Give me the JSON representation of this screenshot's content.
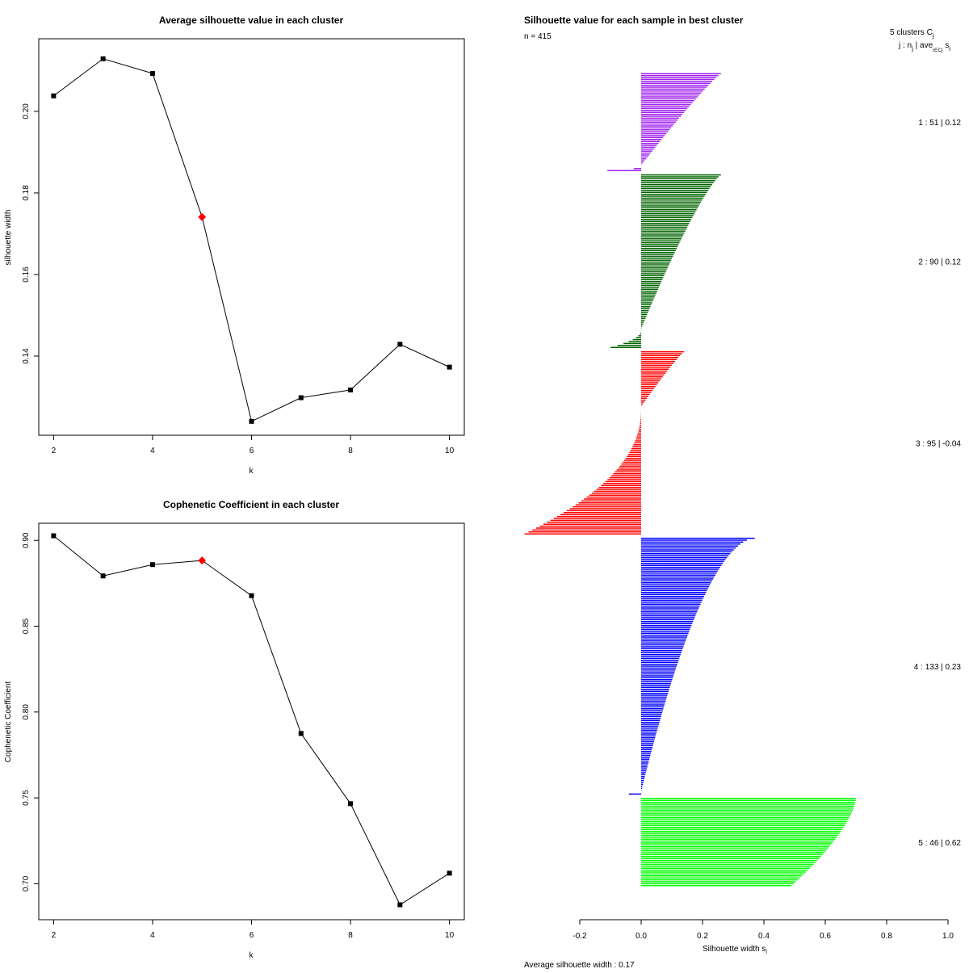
{
  "chart_data": [
    {
      "type": "line",
      "title": "Average silhouette value in each cluster",
      "xlabel": "k",
      "ylabel": "silhouette width",
      "x": [
        2,
        3,
        4,
        5,
        6,
        7,
        8,
        9,
        10
      ],
      "y": [
        0.2038,
        0.2129,
        0.2093,
        0.1741,
        0.124,
        0.1298,
        0.1317,
        0.1429,
        0.1373
      ],
      "highlight_k": 5,
      "xlim": [
        1.7,
        10.3
      ],
      "ylim": [
        0.1206,
        0.2178
      ],
      "xticks": [
        2,
        4,
        6,
        8,
        10
      ],
      "yticks": [
        0.14,
        0.16,
        0.18,
        0.2
      ],
      "xtick_labels": [
        "2",
        "4",
        "6",
        "8",
        "10"
      ],
      "ytick_labels": [
        "0.14",
        "0.16",
        "0.18",
        "0.20"
      ],
      "point_color": "#000000",
      "highlight_color": "#ff0000"
    },
    {
      "type": "line",
      "title": "Cophenetic Coefficient in each cluster",
      "xlabel": "k",
      "ylabel": "Cophenetic Coefficient",
      "x": [
        2,
        3,
        4,
        5,
        6,
        7,
        8,
        9,
        10
      ],
      "y": [
        0.9027,
        0.8793,
        0.8859,
        0.8883,
        0.8678,
        0.7875,
        0.7466,
        0.6877,
        0.7061
      ],
      "highlight_k": 5,
      "xlim": [
        1.7,
        10.3
      ],
      "ylim": [
        0.679,
        0.91
      ],
      "xticks": [
        2,
        4,
        6,
        8,
        10
      ],
      "yticks": [
        0.7,
        0.75,
        0.8,
        0.85,
        0.9
      ],
      "xtick_labels": [
        "2",
        "4",
        "6",
        "8",
        "10"
      ],
      "ytick_labels": [
        "0.70",
        "0.75",
        "0.80",
        "0.85",
        "0.90"
      ],
      "point_color": "#000000",
      "highlight_color": "#ff0000"
    },
    {
      "type": "bar",
      "orientation": "horizontal",
      "title": "Silhouette value for each sample in best cluster",
      "n_label": "n = 415",
      "header_line1": "5 clusters C",
      "header_line1_sub": "j",
      "header_line2": "j : n",
      "header_line2_sub": "j",
      "header_line2_tail": " | ave",
      "header_line2_tail_sub": "i∈Cj",
      "header_line2_end": " s",
      "header_line2_end_sub": "i",
      "xlabel": "Silhouette width s",
      "xlabel_sub": "i",
      "footer": "Average silhouette width :  0.17",
      "xlim": [
        -0.2,
        1.0
      ],
      "xticks": [
        -0.2,
        0.0,
        0.2,
        0.4,
        0.6,
        0.8,
        1.0
      ],
      "xtick_labels": [
        "-0.2",
        "0.0",
        "0.2",
        "0.4",
        "0.6",
        "0.8",
        "1.0"
      ],
      "total_samples": 415,
      "clusters": [
        {
          "id": 1,
          "size": 51,
          "avg_width": 0.12,
          "label": "1 :  51  |  0.12",
          "color": "#a020f0",
          "max": 0.26,
          "min": -0.11,
          "neg": 3,
          "shape": 0.9
        },
        {
          "id": 2,
          "size": 90,
          "avg_width": 0.12,
          "label": "2 :  90  |  0.12",
          "color": "#006400",
          "max": 0.26,
          "min": -0.1,
          "neg": 10,
          "shape": 0.8
        },
        {
          "id": 3,
          "size": 95,
          "avg_width": -0.04,
          "label": "3 :  95  |  -0.04",
          "color": "#ff0000",
          "max": 0.14,
          "min": -0.38,
          "neg": 66,
          "shape": 0.9
        },
        {
          "id": 4,
          "size": 133,
          "avg_width": 0.23,
          "label": "4 :  133  |  0.23",
          "color": "#0000ff",
          "max": 0.37,
          "min": -0.04,
          "neg": 2,
          "shape": 0.55
        },
        {
          "id": 5,
          "size": 46,
          "avg_width": 0.62,
          "label": "5 :  46  |  0.62",
          "color": "#00ff00",
          "max": 0.7,
          "min": 0.49,
          "neg": 0,
          "shape": 1.5
        }
      ]
    }
  ]
}
